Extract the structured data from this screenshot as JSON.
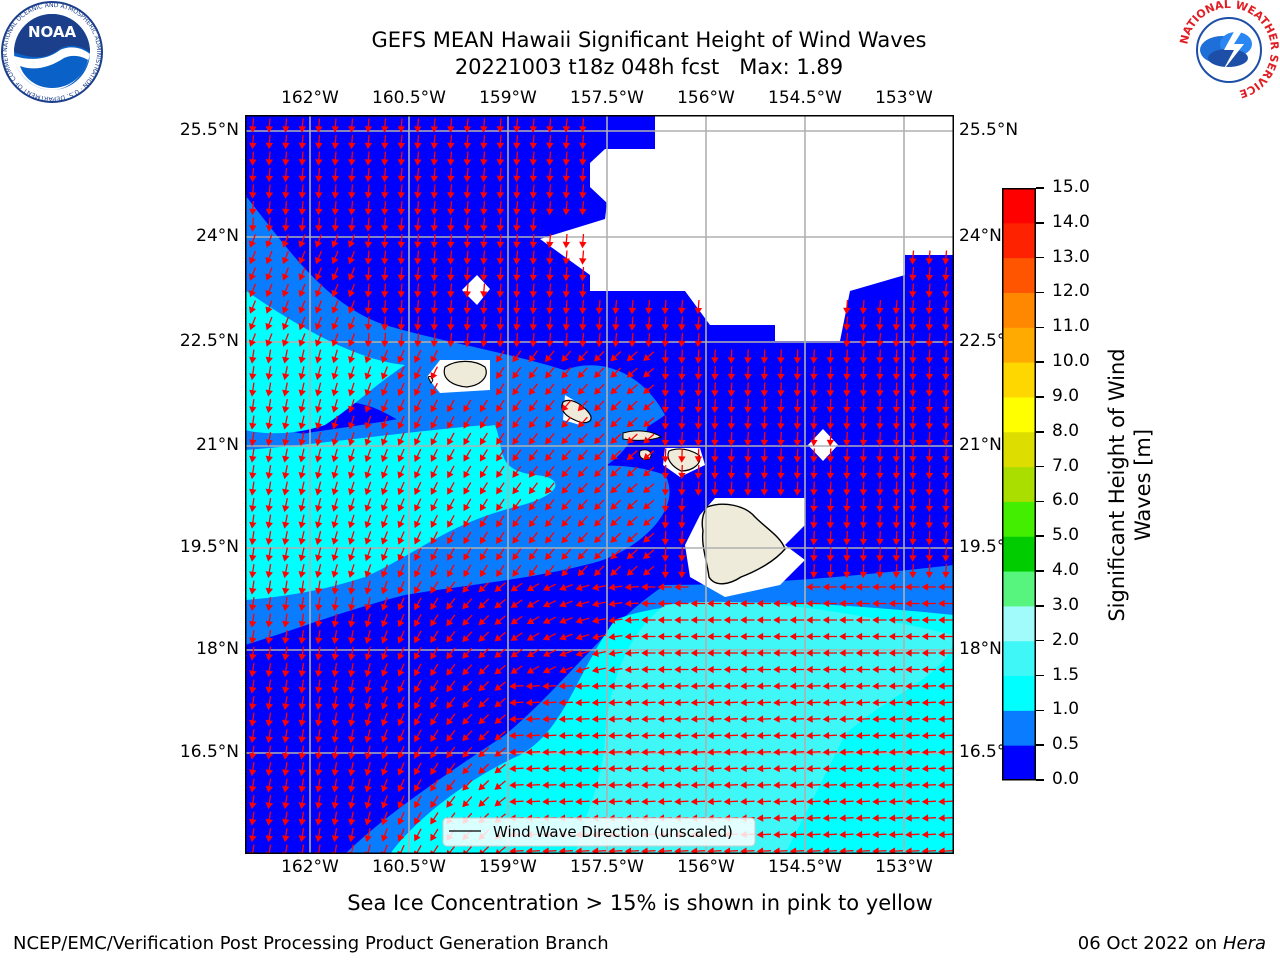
{
  "header": {
    "title_line1": "GEFS MEAN Hawaii Significant Height of Wind Waves",
    "title_line2": "20221003 t18z 048h fcst   Max: 1.89"
  },
  "logos": {
    "noaa_text": "NOAA",
    "noaa_ring_text": "NATIONAL OCEANIC AND ATMOSPHERIC ADMINISTRATION · U.S. DEPARTMENT OF COMMERCE",
    "nws_ring_text": "NATIONAL WEATHER SERVICE"
  },
  "map": {
    "lon_ticks": [
      "162°W",
      "160.5°W",
      "159°W",
      "157.5°W",
      "156°W",
      "154.5°W",
      "153°W"
    ],
    "lat_ticks": [
      "25.5°N",
      "24°N",
      "22.5°N",
      "21°N",
      "19.5°N",
      "18°N",
      "16.5°N"
    ],
    "legend_label": "Wind Wave Direction (unscaled)",
    "arrow_color": "#ff0000",
    "grid_color": "#b0b0b0"
  },
  "colorbar": {
    "title_line1": "Significant Height of Wind",
    "title_line2": "Waves [m]",
    "levels": [
      "0.0",
      "0.5",
      "1.0",
      "1.5",
      "2.0",
      "3.0",
      "4.0",
      "5.0",
      "6.0",
      "7.0",
      "8.0",
      "9.0",
      "10.0",
      "11.0",
      "12.0",
      "13.0",
      "14.0",
      "15.0"
    ],
    "colors": [
      "#0000ff",
      "#0a7cff",
      "#00ffff",
      "#3ff7f7",
      "#a2fbfb",
      "#57f57d",
      "#00cc00",
      "#44ee00",
      "#aadd00",
      "#dddd00",
      "#ffff00",
      "#ffd700",
      "#ffaa00",
      "#ff8800",
      "#ff5500",
      "#ff2200",
      "#ff0000"
    ]
  },
  "footer": {
    "note": "Sea Ice Concentration > 15% is shown in pink to yellow",
    "left": "NCEP/EMC/Verification Post Processing Product Generation Branch",
    "right_prefix": "06 Oct 2022 on ",
    "right_machine": "Hera"
  }
}
